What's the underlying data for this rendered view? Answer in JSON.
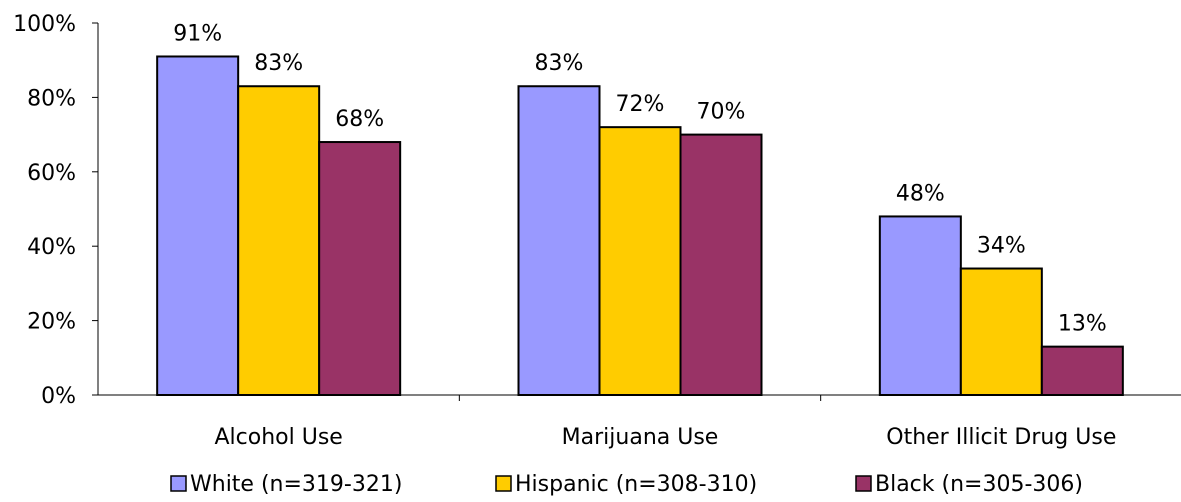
{
  "chart_data": {
    "type": "bar",
    "categories": [
      "Alcohol Use",
      "Marijuana Use",
      "Other Illicit Drug Use"
    ],
    "series": [
      {
        "name": "White (n=319-321)",
        "values": [
          91,
          83,
          48
        ],
        "color": "#9999FF"
      },
      {
        "name": "Hispanic (n=308-310)",
        "values": [
          83,
          72,
          34
        ],
        "color": "#FFCC00"
      },
      {
        "name": "Black (n=305-306)",
        "values": [
          68,
          70,
          13
        ],
        "color": "#993366"
      }
    ],
    "data_labels": [
      [
        "91%",
        "83%",
        "68%"
      ],
      [
        "83%",
        "72%",
        "70%"
      ],
      [
        "48%",
        "34%",
        "13%"
      ]
    ],
    "yticks": [
      "0%",
      "20%",
      "40%",
      "60%",
      "80%",
      "100%"
    ],
    "ylim": [
      0,
      100
    ],
    "grid": false,
    "legend": "bottom"
  }
}
